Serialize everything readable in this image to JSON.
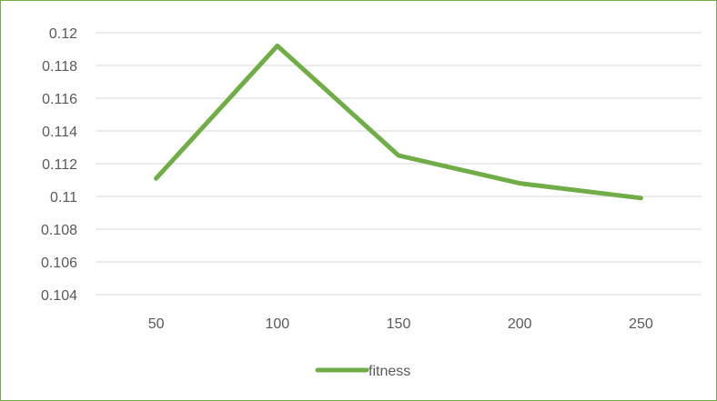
{
  "chart_data": {
    "type": "line",
    "categories": [
      "50",
      "100",
      "150",
      "200",
      "250"
    ],
    "series": [
      {
        "name": "fitness",
        "values": [
          0.1111,
          0.1192,
          0.1125,
          0.1108,
          0.1099
        ],
        "color": "#70ad47"
      }
    ],
    "y_ticks": [
      "0.104",
      "0.106",
      "0.108",
      "0.11",
      "0.112",
      "0.114",
      "0.116",
      "0.118",
      "0.12"
    ],
    "ylim": [
      0.104,
      0.12
    ],
    "grid": true,
    "legend": "bottom",
    "gridline_color": "#d9d9d9",
    "text_color": "#595959"
  }
}
